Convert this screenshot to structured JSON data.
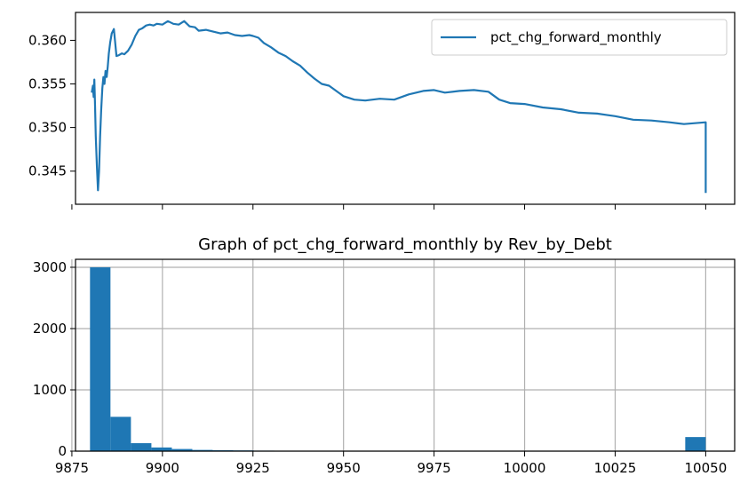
{
  "chart_data": [
    {
      "type": "line",
      "title": "",
      "xlabel": "",
      "ylabel": "",
      "xlim": [
        9876,
        10058
      ],
      "ylim": [
        0.3412,
        0.3632
      ],
      "yticks": [
        0.345,
        0.35,
        0.355,
        0.36
      ],
      "ytick_labels": [
        "0.345",
        "0.350",
        "0.355",
        "0.360"
      ],
      "xticks": [
        9875,
        9900,
        9925,
        9950,
        9975,
        10000,
        10025,
        10050
      ],
      "xtick_labels": [
        "",
        "",
        "",
        "",
        "",
        "",
        "",
        ""
      ],
      "grid": false,
      "legend": {
        "placement": "upper right",
        "entries": [
          "pct_chg_forward_monthly"
        ]
      },
      "series": [
        {
          "name": "pct_chg_forward_monthly",
          "color": "#1f77b4",
          "x": [
            9880.5,
            9880.8,
            9881.0,
            9881.2,
            9881.4,
            9881.6,
            9881.9,
            9882.2,
            9882.5,
            9882.8,
            9883.1,
            9883.4,
            9883.7,
            9884.0,
            9884.3,
            9884.6,
            9884.9,
            9885.2,
            9885.6,
            9886.0,
            9886.6,
            9887.3,
            9888.0,
            9888.8,
            9889.5,
            9890.5,
            9891.5,
            9892.5,
            9893.5,
            9894.5,
            9895.5,
            9896.5,
            9897.5,
            9898.5,
            9900.0,
            9901.5,
            9903.0,
            9904.5,
            9906.0,
            9907.5,
            9909.0,
            9910.0,
            9912.0,
            9914.0,
            9916.0,
            9918.0,
            9920.0,
            9922.0,
            9924.0,
            9925.0,
            9926.5,
            9928.0,
            9930.0,
            9932.0,
            9934.0,
            9936.0,
            9938.0,
            9940.0,
            9942.0,
            9944.0,
            9946.0,
            9948.0,
            9950.0,
            9953.0,
            9956.0,
            9960.0,
            9964.0,
            9968.0,
            9972.0,
            9975.0,
            9978.0,
            9982.0,
            9986.0,
            9990.0,
            9993.0,
            9996.0,
            10000.0,
            10005.0,
            10010.0,
            10015.0,
            10020.0,
            10025.0,
            10030.0,
            10035.0,
            10040.0,
            10044.0,
            10047.0,
            10050.0,
            10050.0,
            10050.0
          ],
          "y": [
            0.354,
            0.3548,
            0.3535,
            0.3555,
            0.3525,
            0.349,
            0.3455,
            0.3428,
            0.345,
            0.349,
            0.352,
            0.3545,
            0.3558,
            0.355,
            0.3565,
            0.3558,
            0.357,
            0.3585,
            0.3598,
            0.3608,
            0.3613,
            0.3582,
            0.3583,
            0.3585,
            0.3584,
            0.3588,
            0.3595,
            0.3605,
            0.3612,
            0.3614,
            0.3617,
            0.3618,
            0.3617,
            0.3619,
            0.3618,
            0.3622,
            0.3619,
            0.3618,
            0.3622,
            0.3616,
            0.3615,
            0.3611,
            0.3612,
            0.361,
            0.3608,
            0.3609,
            0.3606,
            0.3605,
            0.3606,
            0.3605,
            0.3603,
            0.3597,
            0.3592,
            0.3586,
            0.3582,
            0.3576,
            0.3571,
            0.3563,
            0.3556,
            0.355,
            0.3548,
            0.3542,
            0.3536,
            0.3532,
            0.3531,
            0.3533,
            0.3532,
            0.3538,
            0.3542,
            0.3543,
            0.354,
            0.3542,
            0.3543,
            0.3541,
            0.3532,
            0.3528,
            0.3527,
            0.3523,
            0.3521,
            0.3517,
            0.3516,
            0.3513,
            0.3509,
            0.3508,
            0.3506,
            0.3504,
            0.3505,
            0.3506,
            0.3448,
            0.3425
          ]
        }
      ]
    },
    {
      "type": "bar",
      "title": "Graph of pct_chg_forward_monthly by Rev_by_Debt",
      "xlabel": "",
      "ylabel": "",
      "xlim": [
        9876,
        10058
      ],
      "ylim": [
        0,
        3130
      ],
      "yticks": [
        0,
        1000,
        2000,
        3000
      ],
      "ytick_labels": [
        "0",
        "1000",
        "2000",
        "3000"
      ],
      "xticks": [
        9875,
        9900,
        9925,
        9950,
        9975,
        10000,
        10025,
        10050
      ],
      "xtick_labels": [
        "9875",
        "9900",
        "9925",
        "9950",
        "9975",
        "10000",
        "10025",
        "10050"
      ],
      "grid": true,
      "bars": {
        "color": "#1f77b4",
        "bin_width": 5.65,
        "bin_starts": [
          9880.0,
          9885.65,
          9891.3,
          9896.95,
          9902.6,
          9908.25,
          9913.9,
          9919.55,
          9925.2,
          9930.85,
          10044.35
        ],
        "values": [
          3000,
          560,
          130,
          60,
          35,
          20,
          15,
          12,
          8,
          5,
          230
        ]
      }
    }
  ]
}
